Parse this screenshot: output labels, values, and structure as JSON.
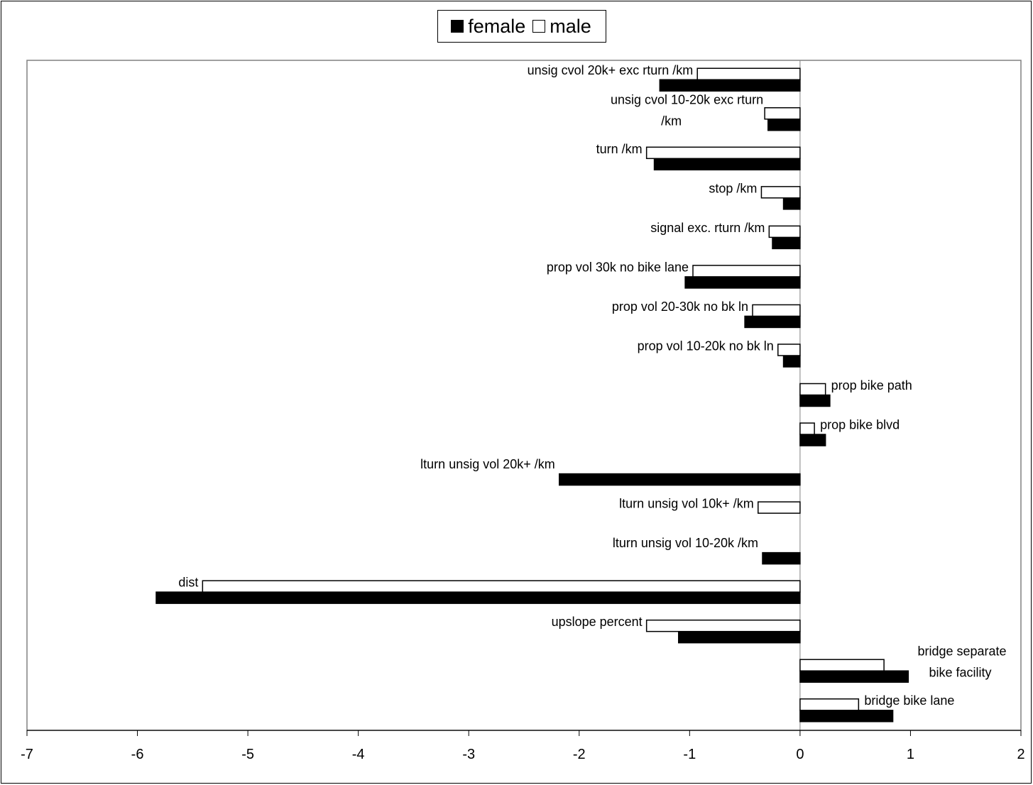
{
  "chart_data": {
    "type": "bar",
    "orientation": "horizontal",
    "xlim": [
      -7,
      2
    ],
    "x_ticks": [
      "-7",
      "-6",
      "-5",
      "-4",
      "-3",
      "-2",
      "-1",
      "0",
      "1",
      "2"
    ],
    "legend": {
      "placement": "top",
      "items": [
        {
          "name": "female",
          "color": "#000000"
        },
        {
          "name": "male",
          "color": "#ffffff"
        }
      ]
    },
    "categories": [
      [
        "unsig cvol 20k+ exc rturn /km"
      ],
      [
        "unsig cvol 10-20k exc rturn",
        "/km"
      ],
      [
        "turn /km"
      ],
      [
        "stop /km"
      ],
      [
        "signal exc. rturn /km"
      ],
      [
        "prop vol 30k no bike lane"
      ],
      [
        "prop vol 20-30k no bk ln"
      ],
      [
        "prop vol 10-20k no bk ln"
      ],
      [
        "prop bike path"
      ],
      [
        "prop bike blvd"
      ],
      [
        "lturn unsig vol 20k+ /km"
      ],
      [
        "lturn unsig vol 10k+ /km"
      ],
      [
        "lturn unsig vol 10-20k /km"
      ],
      [
        "dist"
      ],
      [
        "upslope percent"
      ],
      [
        "bridge separate",
        "bike facility"
      ],
      [
        "bridge bike lane"
      ]
    ],
    "series": [
      {
        "name": "female",
        "color": "#000000",
        "values": [
          -1.27,
          -0.29,
          -1.32,
          -0.15,
          -0.25,
          -1.04,
          -0.5,
          -0.15,
          0.27,
          0.23,
          -2.18,
          null,
          -0.34,
          -5.83,
          -1.1,
          0.98,
          0.84
        ]
      },
      {
        "name": "male",
        "color": "#ffffff",
        "values": [
          -0.93,
          -0.32,
          -1.39,
          -0.35,
          -0.28,
          -0.97,
          -0.43,
          -0.2,
          0.23,
          0.13,
          null,
          -0.38,
          null,
          -5.41,
          -1.39,
          0.76,
          0.53
        ]
      }
    ]
  }
}
